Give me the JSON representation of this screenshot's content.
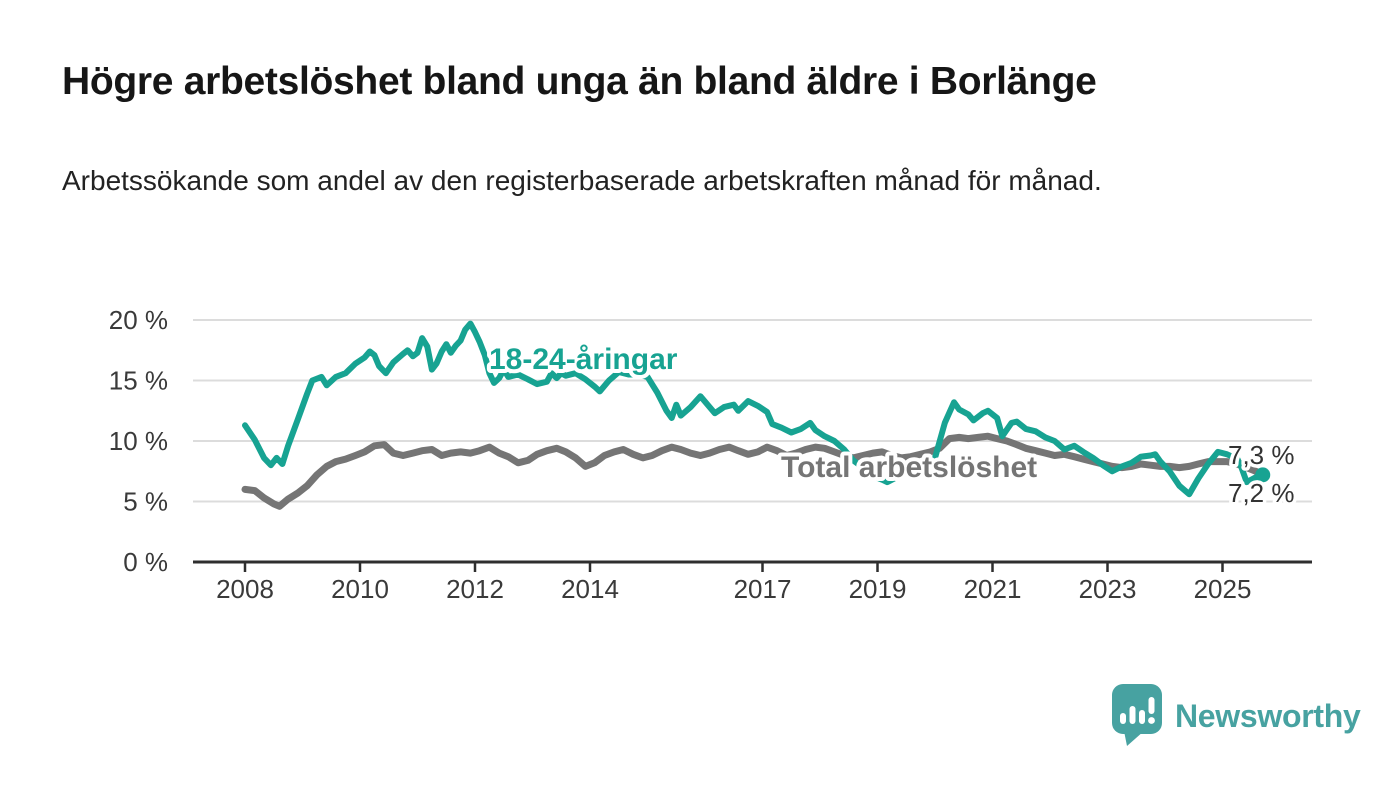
{
  "header": {
    "title": "Högre arbetslöshet bland unga än bland äldre i Borlänge",
    "subtitle": "Arbetssökande som andel av den registerbaserade arbetskraften månad för månad."
  },
  "chart_data": {
    "type": "line",
    "title": "Högre arbetslöshet bland unga än bland äldre i Borlänge",
    "unit": "%",
    "grid": true,
    "legend_position": "inline-labels",
    "x_axis": {
      "ticks": [
        2008,
        2010,
        2012,
        2014,
        2017,
        2019,
        2021,
        2023,
        2025
      ],
      "tick_labels": [
        "2008",
        "2010",
        "2012",
        "2014",
        "2017",
        "2019",
        "2021",
        "2023",
        "2025"
      ],
      "range": [
        2007.1,
        2026.6
      ]
    },
    "y_axis": {
      "ticks": [
        0,
        5,
        10,
        15,
        20
      ],
      "tick_labels": [
        "0 %",
        "5 %",
        "10 %",
        "15 %",
        "20 %"
      ],
      "range": [
        0,
        21
      ]
    },
    "series": [
      {
        "id": "total",
        "name": "Total arbetslöshet",
        "color": "#757575",
        "width": 7,
        "end_dot": false,
        "end_value_label": "7,3 %",
        "points": [
          [
            2008.0,
            6.0
          ],
          [
            2008.17,
            5.9
          ],
          [
            2008.33,
            5.3
          ],
          [
            2008.5,
            4.8
          ],
          [
            2008.6,
            4.6
          ],
          [
            2008.75,
            5.2
          ],
          [
            2008.92,
            5.7
          ],
          [
            2009.08,
            6.3
          ],
          [
            2009.25,
            7.2
          ],
          [
            2009.42,
            7.9
          ],
          [
            2009.58,
            8.3
          ],
          [
            2009.75,
            8.5
          ],
          [
            2009.92,
            8.8
          ],
          [
            2010.08,
            9.1
          ],
          [
            2010.25,
            9.6
          ],
          [
            2010.42,
            9.7
          ],
          [
            2010.58,
            9.0
          ],
          [
            2010.75,
            8.8
          ],
          [
            2010.92,
            9.0
          ],
          [
            2011.08,
            9.2
          ],
          [
            2011.25,
            9.3
          ],
          [
            2011.42,
            8.8
          ],
          [
            2011.58,
            9.0
          ],
          [
            2011.75,
            9.1
          ],
          [
            2011.92,
            9.0
          ],
          [
            2012.08,
            9.2
          ],
          [
            2012.25,
            9.5
          ],
          [
            2012.42,
            9.0
          ],
          [
            2012.58,
            8.7
          ],
          [
            2012.75,
            8.2
          ],
          [
            2012.92,
            8.4
          ],
          [
            2013.08,
            8.9
          ],
          [
            2013.25,
            9.2
          ],
          [
            2013.42,
            9.4
          ],
          [
            2013.58,
            9.1
          ],
          [
            2013.75,
            8.6
          ],
          [
            2013.92,
            7.9
          ],
          [
            2014.08,
            8.2
          ],
          [
            2014.25,
            8.8
          ],
          [
            2014.42,
            9.1
          ],
          [
            2014.58,
            9.3
          ],
          [
            2014.75,
            8.9
          ],
          [
            2014.92,
            8.6
          ],
          [
            2015.08,
            8.8
          ],
          [
            2015.25,
            9.2
          ],
          [
            2015.42,
            9.5
          ],
          [
            2015.58,
            9.3
          ],
          [
            2015.75,
            9.0
          ],
          [
            2015.92,
            8.8
          ],
          [
            2016.08,
            9.0
          ],
          [
            2016.25,
            9.3
          ],
          [
            2016.42,
            9.5
          ],
          [
            2016.58,
            9.2
          ],
          [
            2016.75,
            8.9
          ],
          [
            2016.92,
            9.1
          ],
          [
            2017.08,
            9.5
          ],
          [
            2017.25,
            9.2
          ],
          [
            2017.42,
            8.8
          ],
          [
            2017.58,
            9.0
          ],
          [
            2017.75,
            9.3
          ],
          [
            2017.92,
            9.5
          ],
          [
            2018.08,
            9.4
          ],
          [
            2018.25,
            9.1
          ],
          [
            2018.42,
            8.8
          ],
          [
            2018.58,
            8.6
          ],
          [
            2018.75,
            8.8
          ],
          [
            2018.92,
            9.0
          ],
          [
            2019.08,
            9.1
          ],
          [
            2019.25,
            8.8
          ],
          [
            2019.42,
            8.6
          ],
          [
            2019.58,
            8.7
          ],
          [
            2019.75,
            8.9
          ],
          [
            2019.92,
            9.1
          ],
          [
            2020.08,
            9.4
          ],
          [
            2020.25,
            10.2
          ],
          [
            2020.42,
            10.3
          ],
          [
            2020.58,
            10.2
          ],
          [
            2020.75,
            10.3
          ],
          [
            2020.92,
            10.4
          ],
          [
            2021.08,
            10.2
          ],
          [
            2021.25,
            10.0
          ],
          [
            2021.42,
            9.7
          ],
          [
            2021.58,
            9.4
          ],
          [
            2021.75,
            9.2
          ],
          [
            2021.92,
            9.0
          ],
          [
            2022.08,
            8.8
          ],
          [
            2022.25,
            8.9
          ],
          [
            2022.42,
            8.7
          ],
          [
            2022.58,
            8.5
          ],
          [
            2022.75,
            8.3
          ],
          [
            2022.92,
            8.1
          ],
          [
            2023.08,
            7.9
          ],
          [
            2023.25,
            7.8
          ],
          [
            2023.42,
            7.9
          ],
          [
            2023.58,
            8.1
          ],
          [
            2023.75,
            8.0
          ],
          [
            2023.92,
            7.9
          ],
          [
            2024.08,
            7.9
          ],
          [
            2024.25,
            7.8
          ],
          [
            2024.42,
            7.9
          ],
          [
            2024.58,
            8.1
          ],
          [
            2024.75,
            8.3
          ],
          [
            2024.92,
            8.3
          ],
          [
            2025.08,
            8.3
          ],
          [
            2025.25,
            8.1
          ],
          [
            2025.42,
            7.8
          ],
          [
            2025.58,
            7.5
          ],
          [
            2025.7,
            7.3
          ]
        ]
      },
      {
        "id": "young",
        "name": "18-24-åringar",
        "color": "#17a392",
        "width": 6,
        "end_dot": true,
        "end_value_label": "7,2 %",
        "points": [
          [
            2008.0,
            11.3
          ],
          [
            2008.17,
            10.1
          ],
          [
            2008.33,
            8.6
          ],
          [
            2008.45,
            8.0
          ],
          [
            2008.55,
            8.6
          ],
          [
            2008.65,
            8.1
          ],
          [
            2008.75,
            9.6
          ],
          [
            2008.92,
            11.8
          ],
          [
            2009.08,
            13.9
          ],
          [
            2009.17,
            15.0
          ],
          [
            2009.33,
            15.3
          ],
          [
            2009.42,
            14.6
          ],
          [
            2009.58,
            15.3
          ],
          [
            2009.75,
            15.6
          ],
          [
            2009.92,
            16.4
          ],
          [
            2010.08,
            16.9
          ],
          [
            2010.17,
            17.4
          ],
          [
            2010.25,
            17.1
          ],
          [
            2010.33,
            16.2
          ],
          [
            2010.45,
            15.6
          ],
          [
            2010.58,
            16.5
          ],
          [
            2010.75,
            17.2
          ],
          [
            2010.83,
            17.5
          ],
          [
            2010.92,
            17.0
          ],
          [
            2011.0,
            17.3
          ],
          [
            2011.08,
            18.5
          ],
          [
            2011.17,
            17.8
          ],
          [
            2011.25,
            15.9
          ],
          [
            2011.33,
            16.4
          ],
          [
            2011.42,
            17.4
          ],
          [
            2011.5,
            18.0
          ],
          [
            2011.58,
            17.3
          ],
          [
            2011.67,
            17.9
          ],
          [
            2011.75,
            18.3
          ],
          [
            2011.83,
            19.2
          ],
          [
            2011.92,
            19.7
          ],
          [
            2012.0,
            19.0
          ],
          [
            2012.08,
            18.2
          ],
          [
            2012.17,
            17.1
          ],
          [
            2012.25,
            15.6
          ],
          [
            2012.33,
            14.8
          ],
          [
            2012.42,
            15.2
          ],
          [
            2012.5,
            15.9
          ],
          [
            2012.58,
            15.3
          ],
          [
            2012.75,
            15.5
          ],
          [
            2012.92,
            15.1
          ],
          [
            2013.08,
            14.7
          ],
          [
            2013.25,
            14.9
          ],
          [
            2013.33,
            15.6
          ],
          [
            2013.42,
            15.2
          ],
          [
            2013.5,
            15.6
          ],
          [
            2013.58,
            15.4
          ],
          [
            2013.75,
            15.6
          ],
          [
            2013.92,
            15.1
          ],
          [
            2014.08,
            14.5
          ],
          [
            2014.17,
            14.1
          ],
          [
            2014.33,
            15.0
          ],
          [
            2014.5,
            15.7
          ],
          [
            2014.67,
            15.5
          ],
          [
            2014.83,
            15.5
          ],
          [
            2015.0,
            15.3
          ],
          [
            2015.17,
            14.0
          ],
          [
            2015.33,
            12.5
          ],
          [
            2015.42,
            11.9
          ],
          [
            2015.5,
            13.0
          ],
          [
            2015.58,
            12.1
          ],
          [
            2015.75,
            12.8
          ],
          [
            2015.92,
            13.7
          ],
          [
            2016.08,
            12.8
          ],
          [
            2016.17,
            12.3
          ],
          [
            2016.33,
            12.8
          ],
          [
            2016.5,
            13.0
          ],
          [
            2016.58,
            12.5
          ],
          [
            2016.75,
            13.3
          ],
          [
            2016.92,
            12.9
          ],
          [
            2017.08,
            12.4
          ],
          [
            2017.17,
            11.4
          ],
          [
            2017.33,
            11.1
          ],
          [
            2017.5,
            10.7
          ],
          [
            2017.67,
            11.0
          ],
          [
            2017.83,
            11.5
          ],
          [
            2017.92,
            10.9
          ],
          [
            2018.08,
            10.4
          ],
          [
            2018.25,
            10.0
          ],
          [
            2018.42,
            9.3
          ],
          [
            2018.58,
            8.4
          ],
          [
            2018.75,
            7.8
          ],
          [
            2018.92,
            7.1
          ],
          [
            2019.08,
            6.8
          ],
          [
            2019.17,
            6.6
          ],
          [
            2019.33,
            7.0
          ],
          [
            2019.5,
            7.6
          ],
          [
            2019.67,
            8.1
          ],
          [
            2019.83,
            8.4
          ],
          [
            2020.0,
            8.6
          ],
          [
            2020.17,
            11.5
          ],
          [
            2020.33,
            13.2
          ],
          [
            2020.42,
            12.6
          ],
          [
            2020.58,
            12.2
          ],
          [
            2020.67,
            11.7
          ],
          [
            2020.83,
            12.3
          ],
          [
            2020.92,
            12.5
          ],
          [
            2021.08,
            11.9
          ],
          [
            2021.17,
            10.4
          ],
          [
            2021.33,
            11.5
          ],
          [
            2021.42,
            11.6
          ],
          [
            2021.58,
            11.0
          ],
          [
            2021.75,
            10.8
          ],
          [
            2021.92,
            10.3
          ],
          [
            2022.08,
            10.0
          ],
          [
            2022.25,
            9.3
          ],
          [
            2022.42,
            9.6
          ],
          [
            2022.58,
            9.1
          ],
          [
            2022.75,
            8.6
          ],
          [
            2022.92,
            8.0
          ],
          [
            2023.08,
            7.5
          ],
          [
            2023.25,
            7.9
          ],
          [
            2023.42,
            8.2
          ],
          [
            2023.58,
            8.7
          ],
          [
            2023.75,
            8.8
          ],
          [
            2023.83,
            8.9
          ],
          [
            2023.92,
            8.3
          ],
          [
            2024.08,
            7.5
          ],
          [
            2024.25,
            6.3
          ],
          [
            2024.42,
            5.6
          ],
          [
            2024.58,
            6.9
          ],
          [
            2024.75,
            8.1
          ],
          [
            2024.92,
            9.1
          ],
          [
            2025.08,
            8.9
          ],
          [
            2025.17,
            8.7
          ],
          [
            2025.25,
            8.6
          ],
          [
            2025.33,
            7.8
          ],
          [
            2025.42,
            6.6
          ],
          [
            2025.58,
            7.0
          ],
          [
            2025.7,
            7.2
          ]
        ]
      }
    ],
    "end_labels": [
      {
        "text": "7,3 %",
        "series": "Total arbetslöshet"
      },
      {
        "text": "7,2 %",
        "series": "18-24-åringar"
      }
    ],
    "colors": {
      "young_line": "#17a392",
      "total_line": "#757575",
      "grid": "#dcdcdc",
      "axis": "#2e2e2e",
      "logo_accent": "#47a2a1"
    }
  },
  "footer": {
    "brand": "Newsworthy"
  }
}
